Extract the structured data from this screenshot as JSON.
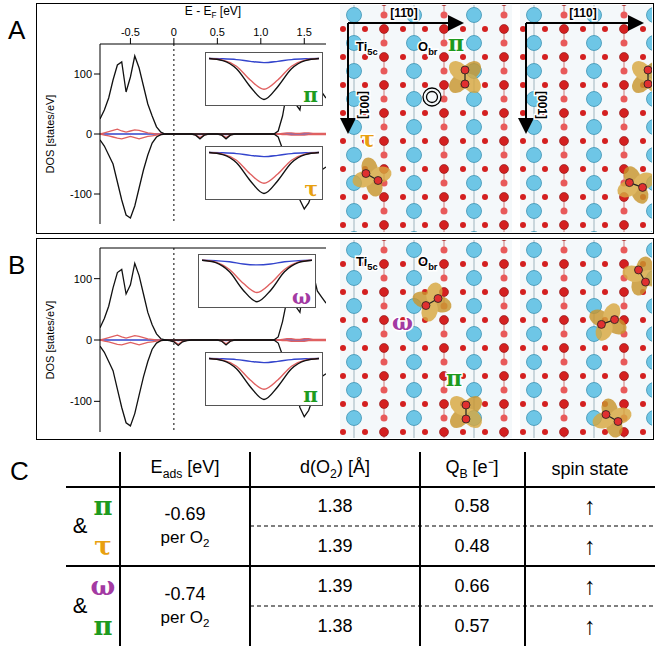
{
  "chart_data": [
    {
      "type": "line",
      "x_label": {
        "base": "E - E",
        "sub": "F",
        "tail": " [eV]"
      },
      "y_label": "DOS [states/eV]",
      "xlim": [
        -0.85,
        1.75
      ],
      "xticks": [
        -0.5,
        0,
        0.5,
        {
          "value": 1,
          "label": "1.0"
        },
        1.5
      ],
      "ylim": [
        -150,
        150
      ],
      "yticks": [
        -100,
        0,
        100
      ],
      "fermi_level": 0,
      "x": [
        -0.85,
        -0.8,
        -0.75,
        -0.7,
        -0.65,
        -0.6,
        -0.55,
        -0.5,
        -0.45,
        -0.4,
        -0.35,
        -0.3,
        -0.25,
        -0.2,
        -0.15,
        -0.1,
        -0.05,
        0,
        0.05,
        0.1,
        0.15,
        0.2,
        0.25,
        0.3,
        0.35,
        0.4,
        0.45,
        0.5,
        0.55,
        0.6,
        0.65,
        0.7,
        0.75,
        0.8,
        0.85,
        0.9,
        0.95,
        1,
        1.05,
        1.1,
        1.15,
        1.2,
        1.25,
        1.3,
        1.35,
        1.4,
        1.45,
        1.5,
        1.55,
        1.6,
        1.65,
        1.7,
        1.75
      ],
      "series": [
        {
          "color": "#111111",
          "values": [
            25,
            40,
            60,
            90,
            115,
            120,
            70,
            95,
            130,
            110,
            80,
            50,
            30,
            12,
            3,
            0,
            0,
            0,
            0,
            0,
            0,
            0,
            0,
            0,
            0,
            0,
            0,
            0,
            0,
            0,
            0,
            0,
            0,
            0,
            0,
            0,
            0,
            0,
            0,
            0,
            0,
            5,
            30,
            70,
            80,
            50,
            40,
            90,
            130,
            110,
            80,
            70,
            60
          ]
        },
        {
          "color": "#111111",
          "values": [
            -10,
            -20,
            -35,
            -50,
            -80,
            -110,
            -135,
            -140,
            -120,
            -90,
            -60,
            -35,
            -15,
            -5,
            -1,
            0,
            0,
            0,
            0,
            0,
            0,
            0,
            -2,
            -8,
            -2,
            0,
            0,
            0,
            -2,
            -8,
            -2,
            0,
            0,
            0,
            0,
            0,
            0,
            0,
            0,
            0,
            0,
            -5,
            -25,
            -45,
            -60,
            -80,
            -110,
            -125,
            -115,
            -95,
            -70,
            -60,
            -55
          ]
        },
        {
          "color": "#e06060",
          "values": [
            0,
            2,
            4,
            6,
            8,
            5,
            3,
            5,
            7,
            6,
            4,
            2,
            1,
            0,
            0,
            0,
            0,
            0,
            0,
            0,
            0,
            0,
            0,
            0,
            0,
            0,
            0,
            0,
            0,
            0,
            0,
            0,
            0,
            0,
            0,
            0,
            0,
            0,
            0,
            0,
            0,
            0,
            1,
            2,
            2,
            1,
            1,
            2,
            2,
            1,
            1,
            1,
            1
          ]
        },
        {
          "color": "#e06060",
          "values": [
            0,
            -2,
            -3,
            -5,
            -7,
            -8,
            -6,
            -4,
            -6,
            -8,
            -6,
            -4,
            -3,
            -2,
            -1,
            0,
            0,
            0,
            0,
            0,
            0,
            0,
            -1.5,
            -6,
            -1.5,
            0,
            0,
            0,
            -1.5,
            -6,
            -1.5,
            0,
            0,
            0,
            0,
            0,
            0,
            0,
            0,
            0,
            0,
            0,
            -1,
            -1,
            -2,
            -2,
            -2,
            -2,
            -1,
            -1,
            -1,
            -1,
            -1
          ]
        },
        {
          "color": "#3344cc",
          "values": [
            0,
            0,
            0,
            0,
            0,
            0,
            0,
            0,
            0,
            0,
            0,
            0,
            0,
            0,
            0,
            0,
            0,
            0,
            0,
            0,
            0,
            0,
            -0.2,
            -0.8,
            -0.2,
            0,
            0,
            0,
            -0.2,
            -0.8,
            -0.2,
            0,
            0,
            0,
            0,
            0,
            0,
            0,
            0,
            0,
            0,
            0,
            0,
            0,
            0,
            0,
            0,
            0,
            0,
            0,
            0,
            0,
            0
          ]
        }
      ],
      "insets": [
        {
          "label": {
            "text": "π",
            "color": "#1e9b1e"
          },
          "tick_labels": false,
          "xlim": [
            0.2,
            0.4
          ],
          "ylim": [
            -8.5,
            0.5
          ],
          "x": [
            0.2,
            0.225,
            0.25,
            0.275,
            0.3,
            0.325,
            0.35,
            0.375,
            0.4
          ],
          "series": [
            {
              "color": "#111111",
              "values": [
                0,
                -0.4,
                -2,
                -5.5,
                -8,
                -5.5,
                -2,
                -0.4,
                0
              ]
            },
            {
              "color": "#e06060",
              "values": [
                0,
                -0.3,
                -1.5,
                -4.2,
                -6,
                -4.2,
                -1.5,
                -0.3,
                0
              ]
            },
            {
              "color": "#3344cc",
              "values": [
                0,
                -0.05,
                -0.2,
                -0.55,
                -0.8,
                -0.55,
                -0.2,
                -0.05,
                0
              ]
            }
          ]
        },
        {
          "label": {
            "text": "τ",
            "color": "#e8a010"
          },
          "tick_labels": false,
          "xlim": [
            0.5,
            0.7
          ],
          "ylim": [
            -8.5,
            0.5
          ],
          "x": [
            0.5,
            0.525,
            0.55,
            0.575,
            0.6,
            0.625,
            0.65,
            0.675,
            0.7
          ],
          "series": [
            {
              "color": "#111111",
              "values": [
                0,
                -0.4,
                -2,
                -5.5,
                -8,
                -5.5,
                -2,
                -0.4,
                0
              ]
            },
            {
              "color": "#e06060",
              "values": [
                0,
                -0.3,
                -1.5,
                -4.2,
                -6,
                -4.2,
                -1.5,
                -0.3,
                0
              ]
            },
            {
              "color": "#3344cc",
              "values": [
                0,
                -0.05,
                -0.2,
                -0.55,
                -0.8,
                -0.55,
                -0.2,
                -0.05,
                0
              ]
            }
          ]
        }
      ]
    },
    {
      "type": "line",
      "y_label": "DOS [states/eV]",
      "tick_labels": "y",
      "xlim": [
        -0.85,
        1.75
      ],
      "xticks": [
        -0.5,
        0,
        0.5,
        {
          "value": 1,
          "label": "1.0"
        },
        1.5
      ],
      "ylim": [
        -150,
        150
      ],
      "yticks": [
        -100,
        0,
        100
      ],
      "fermi_level": 0,
      "x": [
        -0.85,
        -0.8,
        -0.75,
        -0.7,
        -0.65,
        -0.6,
        -0.55,
        -0.5,
        -0.45,
        -0.4,
        -0.35,
        -0.3,
        -0.25,
        -0.2,
        -0.15,
        -0.1,
        -0.05,
        0,
        0.05,
        0.1,
        0.15,
        0.2,
        0.25,
        0.3,
        0.35,
        0.4,
        0.45,
        0.5,
        0.55,
        0.6,
        0.65,
        0.7,
        0.75,
        0.8,
        0.85,
        0.9,
        0.95,
        1,
        1.05,
        1.1,
        1.15,
        1.2,
        1.25,
        1.3,
        1.35,
        1.4,
        1.45,
        1.5,
        1.55,
        1.6,
        1.65,
        1.7,
        1.75
      ],
      "series": [
        {
          "color": "#111111",
          "values": [
            20,
            35,
            55,
            85,
            110,
            115,
            75,
            90,
            125,
            105,
            75,
            45,
            25,
            10,
            2,
            0,
            0,
            0,
            0,
            0,
            0,
            0,
            0,
            0,
            0,
            0,
            0,
            0,
            0,
            0,
            0,
            0,
            0,
            0,
            0,
            0,
            0,
            0,
            0,
            0,
            0,
            5,
            30,
            65,
            80,
            55,
            45,
            95,
            125,
            110,
            80,
            70,
            60
          ]
        },
        {
          "color": "#111111",
          "values": [
            -10,
            -20,
            -35,
            -50,
            -80,
            -110,
            -135,
            -140,
            -120,
            -90,
            -60,
            -35,
            -15,
            -5,
            -1,
            0,
            -1,
            -3,
            -9,
            -3,
            -1,
            0,
            0,
            0,
            0,
            0,
            0,
            0,
            -2,
            -8,
            -2,
            0,
            0,
            0,
            0,
            0,
            0,
            0,
            0,
            0,
            0,
            -5,
            -25,
            -45,
            -60,
            -80,
            -110,
            -125,
            -115,
            -95,
            -70,
            -60,
            -55
          ]
        },
        {
          "color": "#e06060",
          "values": [
            0,
            2,
            4,
            6,
            8,
            5,
            3,
            5,
            7,
            6,
            4,
            2,
            1,
            0,
            0,
            0,
            0,
            0,
            0,
            0,
            0,
            0,
            0,
            0,
            0,
            0,
            0,
            0,
            0,
            0,
            0,
            0,
            0,
            0,
            0,
            0,
            0,
            0,
            0,
            0,
            0,
            0,
            1,
            2,
            2,
            1,
            1,
            2,
            2,
            1,
            1,
            1,
            1
          ]
        },
        {
          "color": "#e06060",
          "values": [
            0,
            -2,
            -3,
            -5,
            -7,
            -8,
            -6,
            -4,
            -6,
            -8,
            -6,
            -4,
            -3,
            -2,
            -1,
            0,
            -0.5,
            -2,
            -7,
            -2,
            -0.5,
            0,
            0,
            0,
            0,
            0,
            0,
            0,
            -1.5,
            -6,
            -1.5,
            0,
            0,
            0,
            0,
            0,
            0,
            0,
            0,
            0,
            0,
            0,
            -1,
            -1,
            -2,
            -2,
            -2,
            -2,
            -1,
            -1,
            -1,
            -1,
            -1
          ]
        },
        {
          "color": "#3344cc",
          "values": [
            0,
            0,
            0,
            0,
            0,
            0,
            0,
            0,
            0,
            0,
            0,
            0,
            0,
            0,
            0,
            0,
            0,
            -0.3,
            -1,
            -0.3,
            0,
            0,
            0,
            0,
            0,
            0,
            0,
            0,
            -0.2,
            -0.8,
            -0.2,
            0,
            0,
            0,
            0,
            0,
            0,
            0,
            0,
            0,
            0,
            0,
            0,
            0,
            0,
            0,
            0,
            0,
            0,
            0,
            0,
            0,
            0
          ]
        }
      ],
      "insets": [
        {
          "label": {
            "text": "ω",
            "color": "#a33aa3"
          },
          "tick_labels": false,
          "xlim": [
            -0.05,
            0.15
          ],
          "ylim": [
            -9.5,
            0.5
          ],
          "x": [
            -0.05,
            -0.025,
            0,
            0.025,
            0.05,
            0.075,
            0.1,
            0.125,
            0.15
          ],
          "series": [
            {
              "color": "#111111",
              "values": [
                0,
                -0.5,
                -2.5,
                -6.5,
                -9,
                -6.5,
                -2.5,
                -0.5,
                0
              ]
            },
            {
              "color": "#e06060",
              "values": [
                0,
                -0.4,
                -2,
                -5,
                -7,
                -5,
                -2,
                -0.4,
                0
              ]
            },
            {
              "color": "#3344cc",
              "values": [
                0,
                -0.1,
                -0.3,
                -0.8,
                -1,
                -0.8,
                -0.3,
                -0.1,
                0
              ]
            }
          ]
        },
        {
          "label": {
            "text": "π",
            "color": "#1e9b1e"
          },
          "tick_labels": false,
          "xlim": [
            0.5,
            0.7
          ],
          "ylim": [
            -8.5,
            0.5
          ],
          "x": [
            0.5,
            0.525,
            0.55,
            0.575,
            0.6,
            0.625,
            0.65,
            0.675,
            0.7
          ],
          "series": [
            {
              "color": "#111111",
              "values": [
                0,
                -0.4,
                -2,
                -5.5,
                -8,
                -5.5,
                -2,
                -0.4,
                0
              ]
            },
            {
              "color": "#e06060",
              "values": [
                0,
                -0.3,
                -1.5,
                -4.2,
                -6,
                -4.2,
                -1.5,
                -0.3,
                0
              ]
            },
            {
              "color": "#3344cc",
              "values": [
                0,
                -0.05,
                -0.2,
                -0.55,
                -0.8,
                -0.55,
                -0.2,
                -0.05,
                0
              ]
            }
          ]
        }
      ]
    }
  ],
  "panels": [
    {
      "letter": "A",
      "structure": {
        "orientation_labels": [
          "[11̄0]",
          "[001]",
          "[110]",
          "[001]"
        ],
        "atom_labels": [
          {
            "base": "Ti",
            "sub": "5c"
          },
          {
            "base": "O",
            "sub": "br"
          }
        ],
        "adsorbate_labels": [
          {
            "text": "π",
            "color": "#1e9b1e"
          },
          {
            "text": "τ",
            "color": "#e8a010"
          }
        ]
      }
    },
    {
      "letter": "B",
      "structure": {
        "atom_labels": [
          {
            "base": "Ti",
            "sub": "5c"
          },
          {
            "base": "O",
            "sub": "br"
          }
        ],
        "adsorbate_labels": [
          {
            "text": "ω",
            "color": "#a33aa3"
          },
          {
            "text": "π",
            "color": "#1e9b1e"
          }
        ]
      }
    }
  ],
  "table": {
    "letter": "C",
    "header": [
      {
        "base": "E",
        "sub": "ads",
        "tail": " [eV]"
      },
      {
        "base": "d(O",
        "sub": "2",
        "tail": ") [Å]"
      },
      {
        "base": "Q",
        "sub": "B",
        "tail": " [e⁻]"
      },
      {
        "base": "spin state"
      }
    ],
    "groups": [
      {
        "prefix": "&",
        "labels": [
          {
            "text": "π",
            "color": "#1e9b1e"
          },
          {
            "text": "τ",
            "color": "#e8a010"
          }
        ],
        "e_ads": -0.69,
        "e_ads_note": {
          "base": "per O",
          "sub": "2"
        },
        "rows": [
          {
            "d_o2": 1.38,
            "q_b": 0.58,
            "spin": "↑"
          },
          {
            "d_o2": 1.39,
            "q_b": 0.48,
            "spin": "↑"
          }
        ]
      },
      {
        "prefix": "&",
        "labels": [
          {
            "text": "ω",
            "color": "#a33aa3"
          },
          {
            "text": "π",
            "color": "#1e9b1e"
          }
        ],
        "e_ads": -0.74,
        "e_ads_note": {
          "base": "per O",
          "sub": "2"
        },
        "rows": [
          {
            "d_o2": 1.39,
            "q_b": 0.66,
            "spin": "↑"
          },
          {
            "d_o2": 1.38,
            "q_b": 0.57,
            "spin": "↑"
          }
        ]
      }
    ]
  }
}
